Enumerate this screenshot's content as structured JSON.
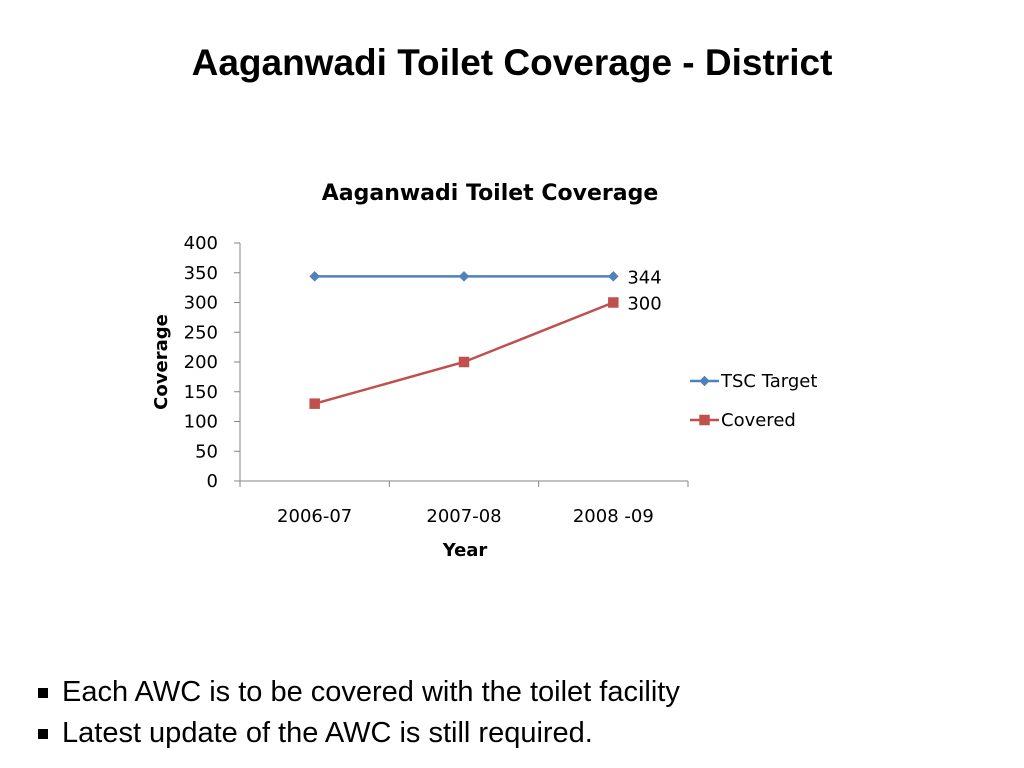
{
  "slide": {
    "title": "Aaganwadi Toilet Coverage - District",
    "bullets": [
      "Each AWC is to be covered with the toilet facility",
      "Latest update of the AWC is still required."
    ]
  },
  "chart_data": {
    "type": "line",
    "title": "Aaganwadi Toilet Coverage",
    "xlabel": "Year",
    "ylabel": "Coverage",
    "categories": [
      "2006-07",
      "2007-08",
      "2008 -09"
    ],
    "ylim": [
      0,
      400
    ],
    "yticks": [
      0,
      50,
      100,
      150,
      200,
      250,
      300,
      350,
      400
    ],
    "grid": false,
    "legend_position": "right",
    "series": [
      {
        "name": "TSC Target",
        "values": [
          344,
          344,
          344
        ],
        "color": "#4F81BD",
        "marker": "diamond",
        "data_labels": [
          null,
          null,
          "344"
        ]
      },
      {
        "name": "Covered",
        "values": [
          130,
          200,
          300
        ],
        "color": "#C0504D",
        "marker": "square",
        "data_labels": [
          null,
          null,
          "300"
        ]
      }
    ]
  }
}
